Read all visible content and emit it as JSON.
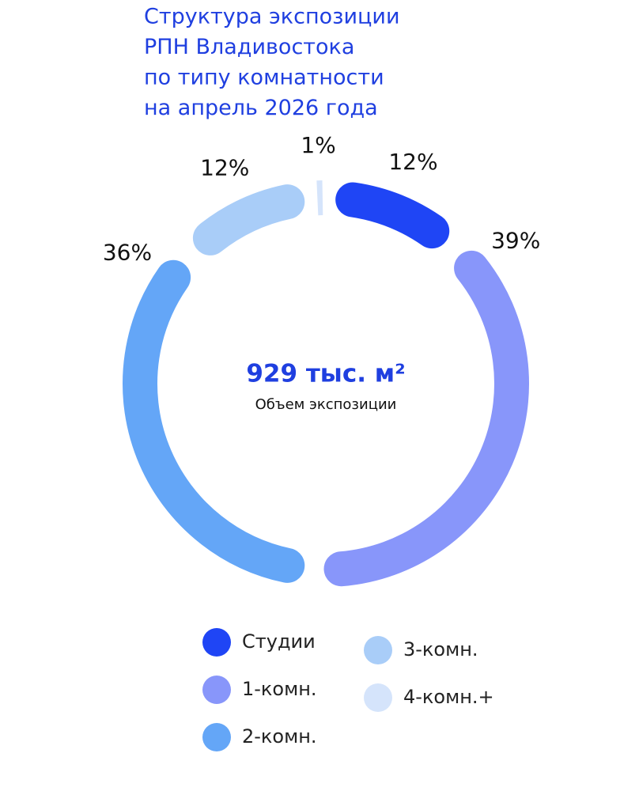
{
  "chart_data": {
    "type": "donut",
    "title": [
      "Структура экспозиции",
      "РПН Владивостока",
      "по типу комнатности",
      "на апрель 2026 года"
    ],
    "center_value": "929 тыс. м²",
    "center_label": "Объем экспозиции",
    "categories": [
      "Студии",
      "1-комн.",
      "2-комн.",
      "3-комн.",
      "4-комн.+"
    ],
    "values": [
      12,
      39,
      36,
      12,
      1
    ],
    "value_labels": [
      "12%",
      "39%",
      "36%",
      "12%",
      "1%"
    ],
    "colors": [
      "#1f45f5",
      "#8896fa",
      "#64a6f7",
      "#a9cdf8",
      "#d5e4fb"
    ]
  }
}
